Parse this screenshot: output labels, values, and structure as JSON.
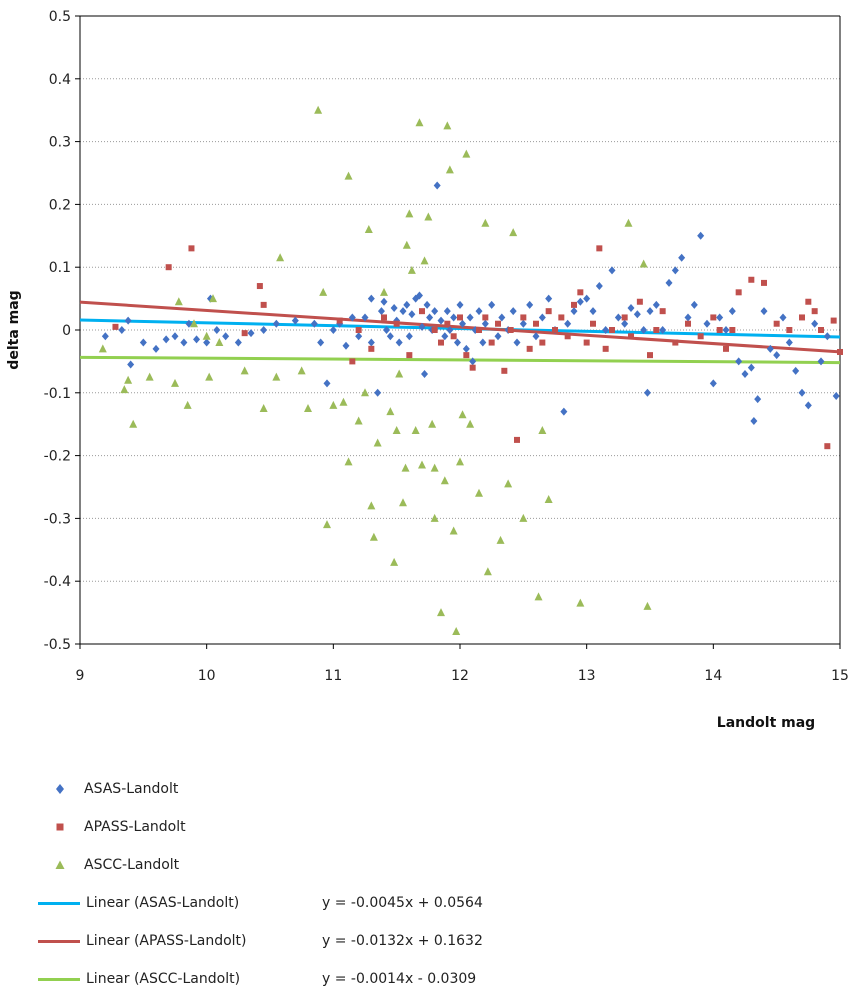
{
  "chart_data": {
    "type": "scatter",
    "title": "",
    "xlabel": "Landolt mag",
    "ylabel": "delta mag",
    "xlim": [
      9,
      15
    ],
    "ylim": [
      -0.5,
      0.5
    ],
    "xticks": [
      9,
      10,
      11,
      12,
      13,
      14,
      15
    ],
    "yticks": [
      -0.5,
      -0.4,
      -0.3,
      -0.2,
      -0.1,
      0,
      0.1,
      0.2,
      0.3,
      0.4,
      0.5
    ],
    "grid": "horizontal dotted",
    "legend_position": "bottom",
    "series": [
      {
        "name": "ASAS-Landolt",
        "marker": "diamond",
        "color": "#4472C4",
        "points": [
          [
            9.2,
            -0.01
          ],
          [
            9.33,
            0.0
          ],
          [
            9.38,
            0.015
          ],
          [
            9.4,
            -0.055
          ],
          [
            9.5,
            -0.02
          ],
          [
            9.6,
            -0.03
          ],
          [
            9.68,
            -0.015
          ],
          [
            9.75,
            -0.01
          ],
          [
            9.82,
            -0.02
          ],
          [
            9.86,
            0.01
          ],
          [
            9.92,
            -0.015
          ],
          [
            10.0,
            -0.02
          ],
          [
            10.03,
            0.05
          ],
          [
            10.08,
            0.0
          ],
          [
            10.15,
            -0.01
          ],
          [
            10.25,
            -0.02
          ],
          [
            10.35,
            -0.005
          ],
          [
            10.45,
            0.0
          ],
          [
            10.55,
            0.01
          ],
          [
            10.7,
            0.015
          ],
          [
            10.85,
            0.01
          ],
          [
            10.9,
            -0.02
          ],
          [
            10.95,
            -0.085
          ],
          [
            11.0,
            0.0
          ],
          [
            11.05,
            0.01
          ],
          [
            11.1,
            -0.025
          ],
          [
            11.15,
            0.02
          ],
          [
            11.2,
            -0.01
          ],
          [
            11.25,
            0.02
          ],
          [
            11.3,
            -0.02
          ],
          [
            11.3,
            0.05
          ],
          [
            11.35,
            -0.1
          ],
          [
            11.38,
            0.03
          ],
          [
            11.4,
            0.045
          ],
          [
            11.42,
            0.0
          ],
          [
            11.45,
            -0.01
          ],
          [
            11.48,
            0.035
          ],
          [
            11.5,
            0.015
          ],
          [
            11.52,
            -0.02
          ],
          [
            11.55,
            0.03
          ],
          [
            11.58,
            0.04
          ],
          [
            11.6,
            -0.01
          ],
          [
            11.62,
            0.025
          ],
          [
            11.65,
            0.05
          ],
          [
            11.68,
            0.055
          ],
          [
            11.7,
            0.005
          ],
          [
            11.72,
            -0.07
          ],
          [
            11.74,
            0.04
          ],
          [
            11.76,
            0.02
          ],
          [
            11.78,
            0.0
          ],
          [
            11.8,
            0.03
          ],
          [
            11.82,
            0.23
          ],
          [
            11.85,
            0.015
          ],
          [
            11.88,
            -0.01
          ],
          [
            11.9,
            0.03
          ],
          [
            11.92,
            0.0
          ],
          [
            11.95,
            0.02
          ],
          [
            11.98,
            -0.02
          ],
          [
            12.0,
            0.04
          ],
          [
            12.02,
            0.01
          ],
          [
            12.05,
            -0.03
          ],
          [
            12.08,
            0.02
          ],
          [
            12.1,
            -0.05
          ],
          [
            12.12,
            0.0
          ],
          [
            12.15,
            0.03
          ],
          [
            12.18,
            -0.02
          ],
          [
            12.2,
            0.01
          ],
          [
            12.25,
            0.04
          ],
          [
            12.3,
            -0.01
          ],
          [
            12.33,
            0.02
          ],
          [
            12.38,
            0.0
          ],
          [
            12.42,
            0.03
          ],
          [
            12.45,
            -0.02
          ],
          [
            12.5,
            0.01
          ],
          [
            12.55,
            0.04
          ],
          [
            12.6,
            -0.01
          ],
          [
            12.65,
            0.02
          ],
          [
            12.7,
            0.05
          ],
          [
            12.75,
            0.0
          ],
          [
            12.82,
            -0.13
          ],
          [
            12.85,
            0.01
          ],
          [
            12.9,
            0.03
          ],
          [
            12.95,
            0.045
          ],
          [
            13.0,
            0.05
          ],
          [
            13.05,
            0.03
          ],
          [
            13.1,
            0.07
          ],
          [
            13.15,
            0.0
          ],
          [
            13.2,
            0.095
          ],
          [
            13.25,
            0.02
          ],
          [
            13.3,
            0.01
          ],
          [
            13.35,
            0.035
          ],
          [
            13.4,
            0.025
          ],
          [
            13.45,
            0.0
          ],
          [
            13.48,
            -0.1
          ],
          [
            13.5,
            0.03
          ],
          [
            13.55,
            0.04
          ],
          [
            13.6,
            0.0
          ],
          [
            13.65,
            0.075
          ],
          [
            13.7,
            0.095
          ],
          [
            13.75,
            0.115
          ],
          [
            13.8,
            0.02
          ],
          [
            13.85,
            0.04
          ],
          [
            13.9,
            0.15
          ],
          [
            13.95,
            0.01
          ],
          [
            14.0,
            -0.085
          ],
          [
            14.05,
            0.02
          ],
          [
            14.1,
            0.0
          ],
          [
            14.15,
            0.03
          ],
          [
            14.2,
            -0.05
          ],
          [
            14.25,
            -0.07
          ],
          [
            14.3,
            -0.06
          ],
          [
            14.32,
            -0.145
          ],
          [
            14.35,
            -0.11
          ],
          [
            14.4,
            0.03
          ],
          [
            14.45,
            -0.03
          ],
          [
            14.5,
            -0.04
          ],
          [
            14.55,
            0.02
          ],
          [
            14.6,
            -0.02
          ],
          [
            14.65,
            -0.065
          ],
          [
            14.7,
            -0.1
          ],
          [
            14.75,
            -0.12
          ],
          [
            14.8,
            0.01
          ],
          [
            14.85,
            -0.05
          ],
          [
            14.9,
            -0.01
          ],
          [
            14.97,
            -0.105
          ]
        ]
      },
      {
        "name": "APASS-Landolt",
        "marker": "square",
        "color": "#C0504D",
        "points": [
          [
            9.28,
            0.005
          ],
          [
            9.7,
            0.1
          ],
          [
            9.88,
            0.13
          ],
          [
            10.3,
            -0.005
          ],
          [
            10.42,
            0.07
          ],
          [
            10.45,
            0.04
          ],
          [
            11.05,
            0.015
          ],
          [
            11.15,
            -0.05
          ],
          [
            11.2,
            0.0
          ],
          [
            11.3,
            -0.03
          ],
          [
            11.4,
            0.02
          ],
          [
            11.5,
            0.01
          ],
          [
            11.6,
            -0.04
          ],
          [
            11.7,
            0.03
          ],
          [
            11.8,
            0.0
          ],
          [
            11.85,
            -0.02
          ],
          [
            11.9,
            0.01
          ],
          [
            11.95,
            -0.01
          ],
          [
            12.0,
            0.02
          ],
          [
            12.05,
            -0.04
          ],
          [
            12.1,
            -0.06
          ],
          [
            12.15,
            0.0
          ],
          [
            12.2,
            0.02
          ],
          [
            12.25,
            -0.02
          ],
          [
            12.3,
            0.01
          ],
          [
            12.35,
            -0.065
          ],
          [
            12.4,
            0.0
          ],
          [
            12.45,
            -0.175
          ],
          [
            12.5,
            0.02
          ],
          [
            12.55,
            -0.03
          ],
          [
            12.6,
            0.01
          ],
          [
            12.65,
            -0.02
          ],
          [
            12.7,
            0.03
          ],
          [
            12.75,
            0.0
          ],
          [
            12.8,
            0.02
          ],
          [
            12.85,
            -0.01
          ],
          [
            12.9,
            0.04
          ],
          [
            12.95,
            0.06
          ],
          [
            13.0,
            -0.02
          ],
          [
            13.05,
            0.01
          ],
          [
            13.1,
            0.13
          ],
          [
            13.15,
            -0.03
          ],
          [
            13.2,
            0.0
          ],
          [
            13.3,
            0.02
          ],
          [
            13.35,
            -0.01
          ],
          [
            13.42,
            0.045
          ],
          [
            13.5,
            -0.04
          ],
          [
            13.55,
            0.0
          ],
          [
            13.6,
            0.03
          ],
          [
            13.7,
            -0.02
          ],
          [
            13.8,
            0.01
          ],
          [
            13.9,
            -0.01
          ],
          [
            14.0,
            0.02
          ],
          [
            14.05,
            0.0
          ],
          [
            14.1,
            -0.03
          ],
          [
            14.15,
            0.0
          ],
          [
            14.2,
            0.06
          ],
          [
            14.3,
            0.08
          ],
          [
            14.4,
            0.075
          ],
          [
            14.5,
            0.01
          ],
          [
            14.6,
            0.0
          ],
          [
            14.7,
            0.02
          ],
          [
            14.75,
            0.045
          ],
          [
            14.8,
            0.03
          ],
          [
            14.85,
            0.0
          ],
          [
            14.9,
            -0.185
          ],
          [
            14.95,
            0.015
          ],
          [
            15.0,
            -0.035
          ]
        ]
      },
      {
        "name": "ASCC-Landolt",
        "marker": "triangle",
        "color": "#9BBB59",
        "points": [
          [
            9.18,
            -0.03
          ],
          [
            9.35,
            -0.095
          ],
          [
            9.38,
            -0.08
          ],
          [
            9.42,
            -0.15
          ],
          [
            9.55,
            -0.075
          ],
          [
            9.75,
            -0.085
          ],
          [
            9.78,
            0.045
          ],
          [
            9.85,
            -0.12
          ],
          [
            9.9,
            0.01
          ],
          [
            10.0,
            -0.01
          ],
          [
            10.02,
            -0.075
          ],
          [
            10.05,
            0.05
          ],
          [
            10.1,
            -0.02
          ],
          [
            10.3,
            -0.065
          ],
          [
            10.45,
            -0.125
          ],
          [
            10.55,
            -0.075
          ],
          [
            10.58,
            0.115
          ],
          [
            10.75,
            -0.065
          ],
          [
            10.8,
            -0.125
          ],
          [
            10.88,
            0.35
          ],
          [
            10.92,
            0.06
          ],
          [
            10.95,
            -0.31
          ],
          [
            11.0,
            -0.12
          ],
          [
            11.08,
            -0.115
          ],
          [
            11.12,
            0.245
          ],
          [
            11.12,
            -0.21
          ],
          [
            11.2,
            -0.145
          ],
          [
            11.25,
            -0.1
          ],
          [
            11.28,
            0.16
          ],
          [
            11.3,
            -0.28
          ],
          [
            11.32,
            -0.33
          ],
          [
            11.35,
            -0.18
          ],
          [
            11.4,
            0.06
          ],
          [
            11.45,
            -0.13
          ],
          [
            11.48,
            -0.37
          ],
          [
            11.5,
            -0.16
          ],
          [
            11.52,
            -0.07
          ],
          [
            11.55,
            -0.275
          ],
          [
            11.57,
            -0.22
          ],
          [
            11.58,
            0.135
          ],
          [
            11.6,
            0.185
          ],
          [
            11.62,
            0.095
          ],
          [
            11.65,
            -0.16
          ],
          [
            11.68,
            0.33
          ],
          [
            11.7,
            -0.215
          ],
          [
            11.72,
            0.11
          ],
          [
            11.75,
            0.18
          ],
          [
            11.78,
            -0.15
          ],
          [
            11.8,
            -0.22
          ],
          [
            11.8,
            -0.3
          ],
          [
            11.85,
            -0.45
          ],
          [
            11.88,
            -0.24
          ],
          [
            11.9,
            0.325
          ],
          [
            11.92,
            0.255
          ],
          [
            11.95,
            -0.32
          ],
          [
            11.97,
            -0.48
          ],
          [
            12.0,
            -0.21
          ],
          [
            12.02,
            -0.135
          ],
          [
            12.05,
            0.28
          ],
          [
            12.08,
            -0.15
          ],
          [
            12.15,
            -0.26
          ],
          [
            12.2,
            0.17
          ],
          [
            12.22,
            -0.385
          ],
          [
            12.32,
            -0.335
          ],
          [
            12.38,
            -0.245
          ],
          [
            12.42,
            0.155
          ],
          [
            12.5,
            -0.3
          ],
          [
            12.62,
            -0.425
          ],
          [
            12.65,
            -0.16
          ],
          [
            12.7,
            -0.27
          ],
          [
            12.95,
            -0.435
          ],
          [
            13.33,
            0.17
          ],
          [
            13.45,
            0.105
          ],
          [
            13.48,
            -0.44
          ]
        ]
      }
    ],
    "trendlines": [
      {
        "name": "Linear (ASAS-Landolt)",
        "equation": "y = -0.0045x + 0.0564",
        "slope": -0.0045,
        "intercept": 0.0564,
        "color": "#00B0F0"
      },
      {
        "name": "Linear (APASS-Landolt)",
        "equation": "y = -0.0132x + 0.1632",
        "slope": -0.0132,
        "intercept": 0.1632,
        "color": "#C0504D"
      },
      {
        "name": "Linear (ASCC-Landolt)",
        "equation": "y = -0.0014x - 0.0309",
        "slope": -0.0014,
        "intercept": -0.0309,
        "color": "#92D050"
      }
    ]
  },
  "legend": {
    "items": [
      {
        "label": "ASAS-Landolt",
        "kind": "diamond",
        "color": "#4472C4"
      },
      {
        "label": "APASS-Landolt",
        "kind": "square",
        "color": "#C0504D"
      },
      {
        "label": "ASCC-Landolt",
        "kind": "triangle",
        "color": "#9BBB59"
      },
      {
        "label": "Linear (ASAS-Landolt)",
        "kind": "line",
        "color": "#00B0F0",
        "equation": "y = -0.0045x + 0.0564"
      },
      {
        "label": "Linear (APASS-Landolt)",
        "kind": "line",
        "color": "#C0504D",
        "equation": "y = -0.0132x + 0.1632"
      },
      {
        "label": "Linear (ASCC-Landolt)",
        "kind": "line",
        "color": "#92D050",
        "equation": "y = -0.0014x - 0.0309"
      }
    ]
  }
}
